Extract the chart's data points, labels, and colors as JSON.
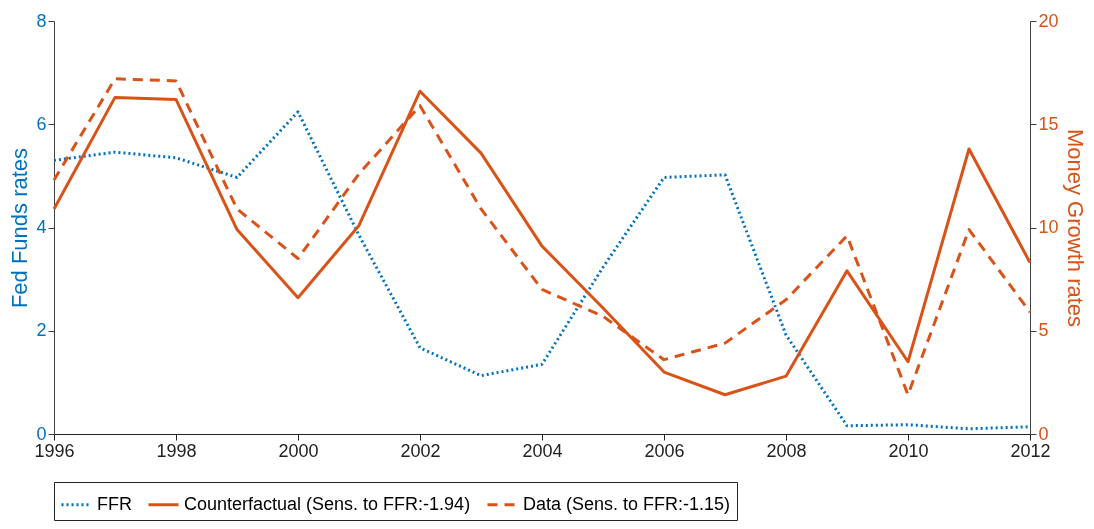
{
  "chart_data": {
    "type": "line",
    "ylabel": "Fed Funds rates",
    "y2label": "Money Growth rates",
    "x": [
      1996,
      1997,
      1998,
      1999,
      2000,
      2001,
      2002,
      2003,
      2004,
      2005,
      2006,
      2007,
      2008,
      2009,
      2010,
      2011,
      2012
    ],
    "series": [
      {
        "name": "FFR",
        "color": "#0072bd",
        "line_style": "dotted",
        "values": [
          5.3,
          5.46,
          5.35,
          4.97,
          6.24,
          3.85,
          1.67,
          1.13,
          1.35,
          3.23,
          4.97,
          5.02,
          1.92,
          0.16,
          0.18,
          0.1,
          0.14
        ]
      },
      {
        "name": "Counterfactual (Sens. to FFR:-1.94)",
        "color": "#d95319",
        "line_style": "solid",
        "axis": "y2",
        "values": [
          10.9,
          16.3,
          16.2,
          9.9,
          6.6,
          10.1,
          16.6,
          13.6,
          9.1,
          6.1,
          3.0,
          1.9,
          2.8,
          7.9,
          3.5,
          13.8,
          8.3
        ]
      },
      {
        "name": "Data (Sens. to FFR:-1.15)",
        "color": "#d95319",
        "line_style": "dashed",
        "axis": "y2",
        "values": [
          12.3,
          17.2,
          17.1,
          10.9,
          8.5,
          12.6,
          15.9,
          10.9,
          7.0,
          5.7,
          3.6,
          4.4,
          6.5,
          9.6,
          1.9,
          9.9,
          5.9
        ]
      }
    ],
    "xlim": [
      1996,
      2012
    ],
    "xticks": [
      1996,
      1998,
      2000,
      2002,
      2004,
      2006,
      2008,
      2010,
      2012
    ],
    "ylim": [
      0,
      8
    ],
    "yticks": [
      0,
      2,
      4,
      6,
      8
    ],
    "y2lim": [
      0,
      20
    ],
    "y2ticks": [
      0,
      5,
      10,
      15,
      20
    ],
    "legend": "bottom",
    "grid": false
  }
}
